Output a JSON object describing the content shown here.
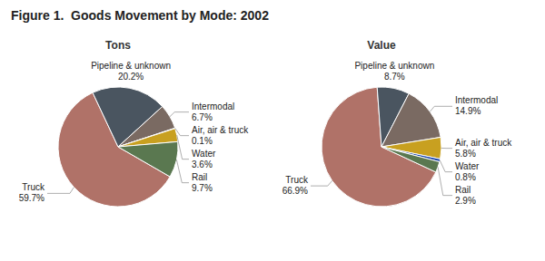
{
  "title": "Figure 1.  Goods Movement by Mode: 2002",
  "chart_data": [
    {
      "type": "pie",
      "title": "Tons",
      "categories": [
        "Truck",
        "Pipeline & unknown",
        "Intermodal",
        "Air, air & truck",
        "Water",
        "Rail"
      ],
      "values": [
        59.7,
        20.2,
        6.7,
        0.1,
        3.6,
        9.7
      ],
      "value_labels": [
        "59.7%",
        "20.2%",
        "6.7%",
        "0.1%",
        "3.6%",
        "9.7%"
      ],
      "colors": [
        "#b07268",
        "#4a5560",
        "#7a6a62",
        "#1a44aa",
        "#c8a020",
        "#5a7850"
      ],
      "data_labels": true
    },
    {
      "type": "pie",
      "title": "Value",
      "categories": [
        "Truck",
        "Pipeline & unknown",
        "Intermodal",
        "Air, air & truck",
        "Water",
        "Rail"
      ],
      "values": [
        66.9,
        8.7,
        14.9,
        5.8,
        0.8,
        2.9
      ],
      "value_labels": [
        "66.9%",
        "8.7%",
        "14.9%",
        "5.8%",
        "0.8%",
        "2.9%"
      ],
      "colors": [
        "#b07268",
        "#4a5560",
        "#7a6a62",
        "#c8a020",
        "#1a44aa",
        "#5a7850"
      ],
      "data_labels": true
    }
  ]
}
